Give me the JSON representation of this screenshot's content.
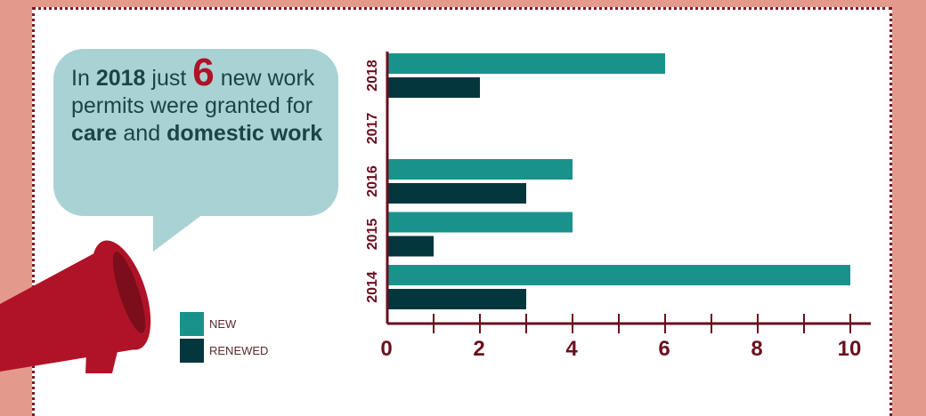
{
  "callout": {
    "prefix": "In",
    "year": "2018",
    "mid": "just",
    "number": "6",
    "after_number": "new work permits were granted for",
    "bold1": "care",
    "and": "and",
    "bold2": "domestic work"
  },
  "colors": {
    "background": "#e39a8d",
    "new": "#1a928c",
    "renewed": "#04363e",
    "axis": "#6b0f1e",
    "accent_red": "#b01327",
    "bubble": "#a9d2d5"
  },
  "icons": [
    "megaphone-icon"
  ],
  "chart_data": {
    "type": "bar",
    "orientation": "horizontal",
    "categories": [
      "2018",
      "2017",
      "2016",
      "2015",
      "2014"
    ],
    "series": [
      {
        "name": "NEW",
        "values": [
          6,
          0,
          4,
          4,
          10
        ]
      },
      {
        "name": "RENEWED",
        "values": [
          2,
          0,
          3,
          1,
          3
        ]
      }
    ],
    "xlim": [
      0,
      10.5
    ],
    "xticks": [
      "0",
      "2",
      "4",
      "6",
      "8",
      "10"
    ],
    "xlabel": "",
    "ylabel": "",
    "grid": false,
    "legend": "bottom-left"
  }
}
